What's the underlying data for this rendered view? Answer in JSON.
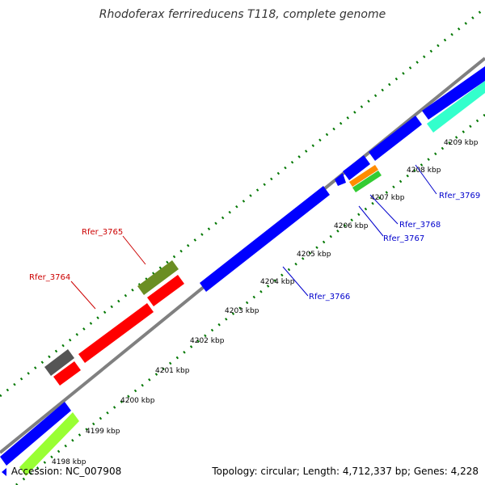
{
  "title": "Rhodoferax ferrireducens T118, complete genome",
  "footer": {
    "accession": "Accession: NC_007908",
    "summary": "Topology: circular; Length: 4,712,337 bp; Genes: 4,228"
  },
  "ticks": [
    "4198 kbp",
    "4199 kbp",
    "4200 kbp",
    "4201 kbp",
    "4202 kbp",
    "4203 kbp",
    "4204 kbp",
    "4205 kbp",
    "4206 kbp",
    "4207 kbp",
    "4208 kbp",
    "4209 kbp"
  ],
  "labels": {
    "rfer_3764": "Rfer_3764",
    "rfer_3765": "Rfer_3765",
    "rfer_3766": "Rfer_3766",
    "rfer_3767": "Rfer_3767",
    "rfer_3768": "Rfer_3768",
    "rfer_3769": "Rfer_3769"
  },
  "colors": {
    "backbone": "#808080",
    "forward_blue": "#0000ff",
    "reverse_blue": "#0000ff",
    "red": "#ff0000",
    "olive": "#6b8e23",
    "dark_gray": "#555555",
    "aqua": "#33ffcc",
    "orange": "#ff8c00",
    "green": "#33cc33",
    "lime": "#99ff33",
    "dot_green": "#007700",
    "label_red": "#cc0000",
    "label_blue": "#0000cc"
  }
}
